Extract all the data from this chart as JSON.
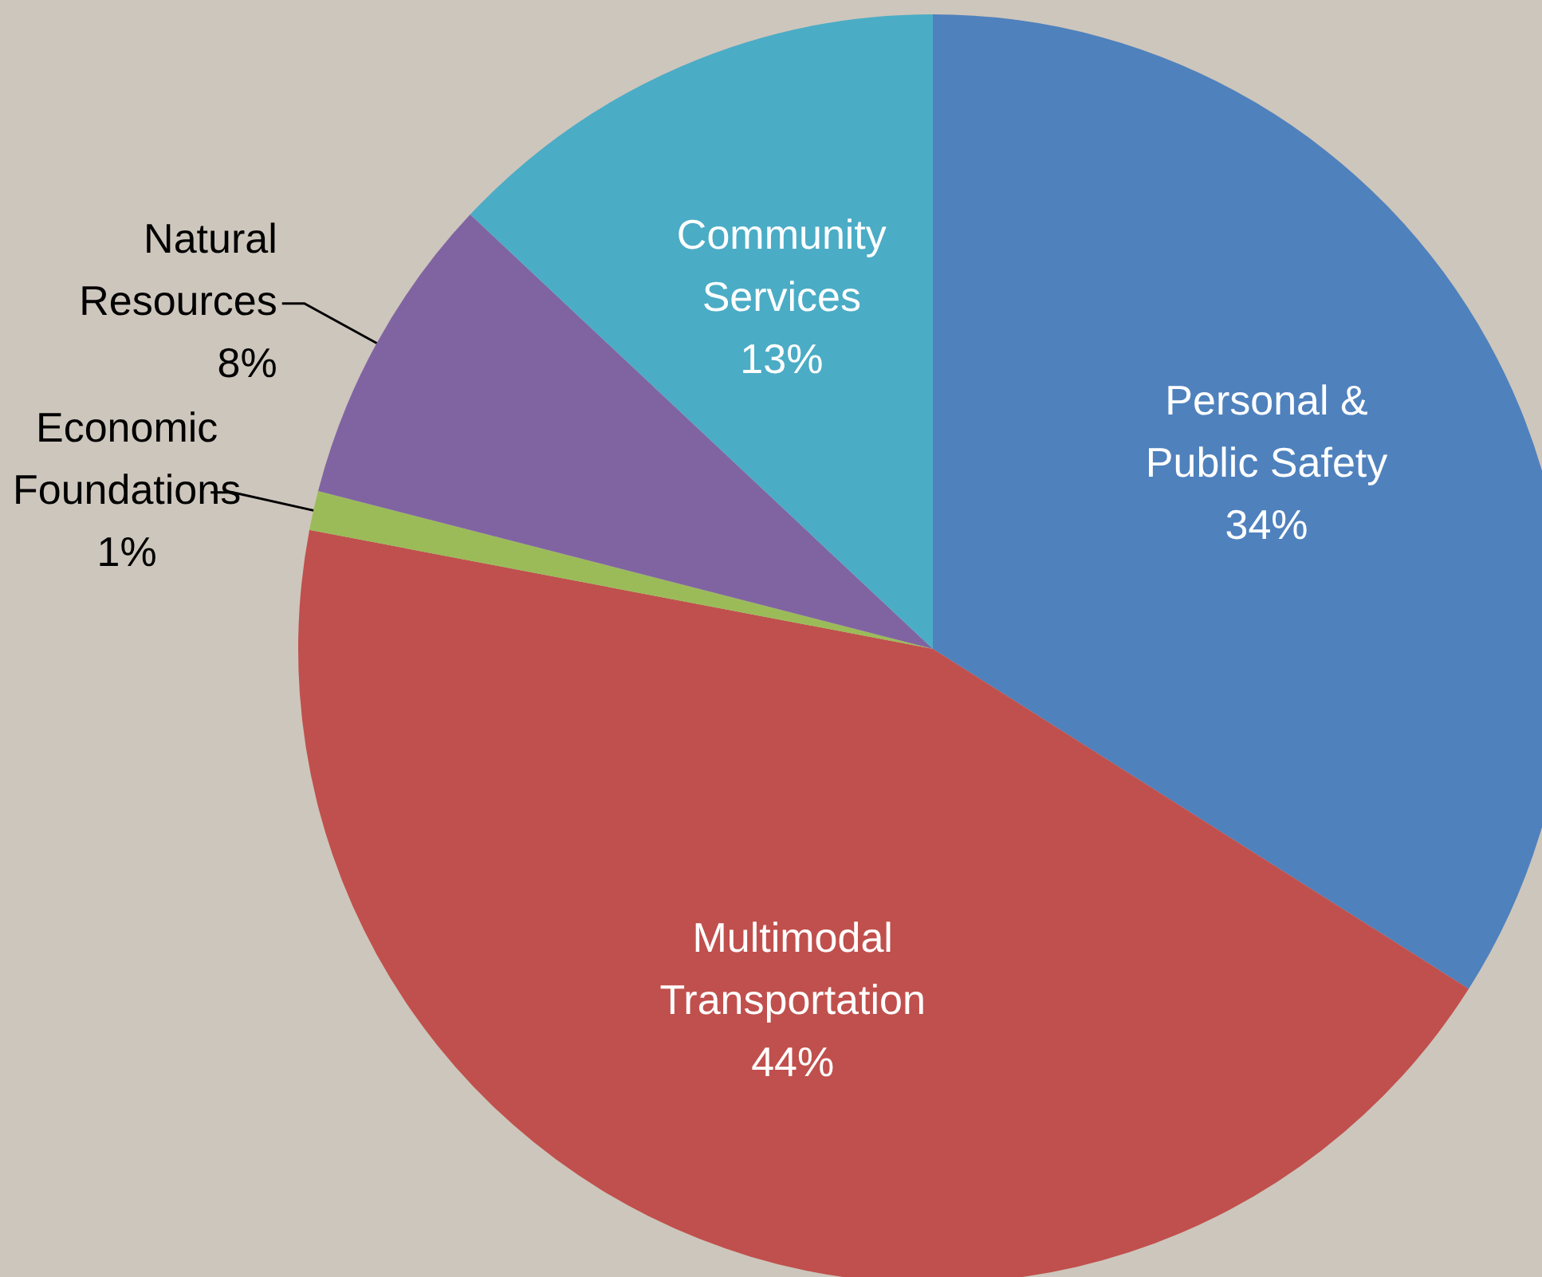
{
  "chart_data": {
    "type": "pie",
    "categories": [
      "Personal & Public Safety",
      "Multimodal Transportation",
      "Economic Foundations",
      "Natural Resources",
      "Community Services"
    ],
    "values": [
      34,
      44,
      1,
      8,
      13
    ],
    "value_labels": [
      "34%",
      "44%",
      "1%",
      "8%",
      "13%"
    ],
    "colors": [
      "#4f81bd",
      "#c0504d",
      "#9bbb59",
      "#8064a2",
      "#4bacc6"
    ],
    "legend": false
  }
}
